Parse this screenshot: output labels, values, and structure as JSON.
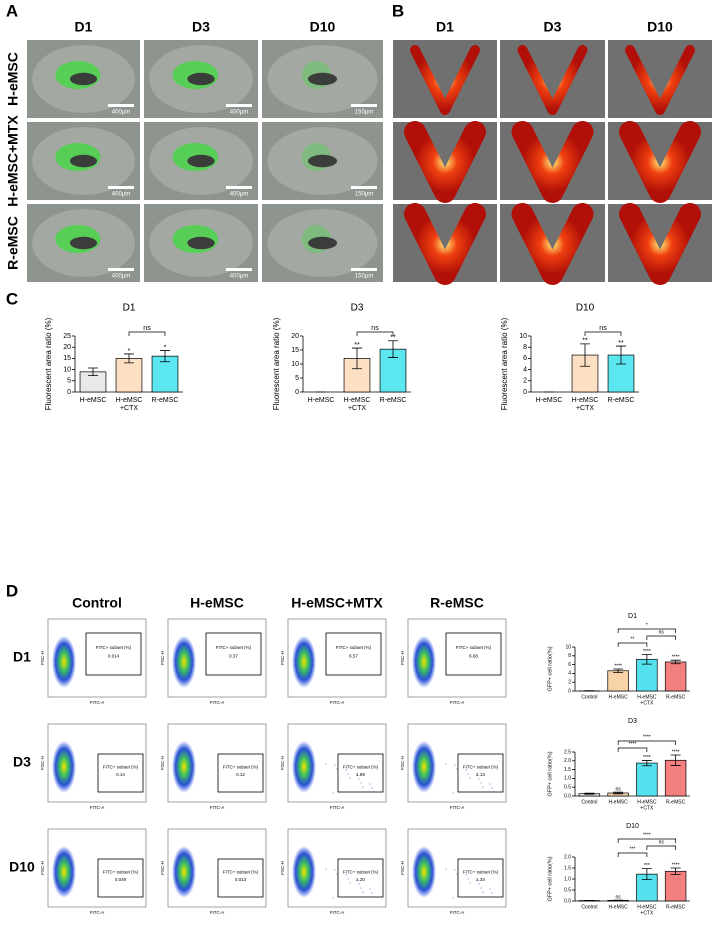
{
  "panels": [
    "A",
    "B",
    "C",
    "D"
  ],
  "panel_a": {
    "columns": [
      "D1",
      "D3",
      "D10"
    ],
    "rows": [
      "H-eMSC",
      "H-eMSC+MTX",
      "R-eMSC"
    ],
    "scale_bars": [
      [
        "400μm",
        "400μm",
        "150μm"
      ],
      [
        "400μm",
        "400μm",
        "150μm"
      ],
      [
        "400μm",
        "400μm",
        "150μm"
      ]
    ]
  },
  "panel_b": {
    "columns": [
      "D1",
      "D3",
      "D10"
    ]
  },
  "chart_data": [
    {
      "type": "bar",
      "title": "D1",
      "ylabel": "Fluorescent area ratio (%)",
      "categories": [
        [
          "H-eMSC"
        ],
        [
          "H-eMSC",
          "+CTX"
        ],
        [
          "R-eMSC"
        ]
      ],
      "values": [
        9,
        15,
        16
      ],
      "errors": [
        1.7,
        2,
        2.5
      ],
      "colors": [
        "#e9e9e9",
        "#fde0c4",
        "#5ce6f0"
      ],
      "annotations": [
        null,
        "*",
        "*"
      ],
      "brackets": [
        {
          "between": [
            [
              "H-eMSC",
              "+CTX"
            ],
            [
              "R-eMSC"
            ]
          ],
          "label": "ns"
        }
      ],
      "ylim": [
        0,
        25
      ],
      "yticks": [
        0,
        5,
        10,
        15,
        20,
        25
      ]
    },
    {
      "type": "bar",
      "title": "D3",
      "ylabel": "Fluorescent area ratio (%)",
      "categories": [
        [
          "H-eMSC"
        ],
        [
          "H-eMSC",
          "+CTX"
        ],
        [
          "R-eMSC"
        ]
      ],
      "values": [
        0,
        12,
        15.3
      ],
      "errors": [
        0,
        3.7,
        3
      ],
      "colors": [
        "#e9e9e9",
        "#fde0c4",
        "#5ce6f0"
      ],
      "annotations": [
        null,
        "**",
        "**"
      ],
      "brackets": [
        {
          "between": [
            [
              "H-eMSC",
              "+CTX"
            ],
            [
              "R-eMSC"
            ]
          ],
          "label": "ns"
        }
      ],
      "ylim": [
        0,
        20
      ],
      "yticks": [
        0,
        5,
        10,
        15,
        20
      ]
    },
    {
      "type": "bar",
      "title": "D10",
      "ylabel": "Fluorescent area ratio (%)",
      "categories": [
        [
          "H-eMSC"
        ],
        [
          "H-eMSC",
          "+CTX"
        ],
        [
          "R-eMSC"
        ]
      ],
      "values": [
        0,
        6.6,
        6.6
      ],
      "errors": [
        0,
        2,
        1.6
      ],
      "colors": [
        "#e9e9e9",
        "#fde0c4",
        "#5ce6f0"
      ],
      "annotations": [
        null,
        "**",
        "**"
      ],
      "brackets": [
        {
          "between": [
            [
              "H-eMSC",
              "+CTX"
            ],
            [
              "R-eMSC"
            ]
          ],
          "label": "ns"
        }
      ],
      "ylim": [
        0,
        10
      ],
      "yticks": [
        0,
        2,
        4,
        6,
        8,
        10
      ]
    },
    {
      "type": "bar",
      "title": "D1",
      "ylabel": "GFP+ cell ratio(%)",
      "categories": [
        [
          "Control"
        ],
        [
          "H-eMSC"
        ],
        [
          "H-eMSC",
          "+CTX"
        ],
        [
          "R-eMSC"
        ]
      ],
      "values": [
        0.02,
        4.6,
        7.2,
        6.6
      ],
      "errors": [
        0.05,
        0.4,
        1.1,
        0.4
      ],
      "colors": [
        "#e9e9e9",
        "#f9d3a8",
        "#55e2ee",
        "#f47f7f"
      ],
      "annotations": [
        null,
        "****",
        "****",
        "****"
      ],
      "brackets": [
        {
          "between": [
            [
              "H-eMSC"
            ],
            [
              "H-eMSC",
              "+CTX"
            ]
          ],
          "label": "**"
        },
        {
          "between": [
            [
              "H-eMSC",
              "+CTX"
            ],
            [
              "R-eMSC"
            ]
          ],
          "label": "ns"
        },
        {
          "between": [
            [
              "H-eMSC"
            ],
            [
              "R-eMSC"
            ]
          ],
          "label": "*"
        }
      ],
      "ylim": [
        0,
        10
      ],
      "yticks": [
        0,
        2,
        4,
        6,
        8,
        10
      ]
    },
    {
      "type": "bar",
      "title": "D3",
      "ylabel": "GFP+ cell ratio(%)",
      "categories": [
        [
          "Control"
        ],
        [
          "H-eMSC"
        ],
        [
          "H-eMSC",
          "+CTX"
        ],
        [
          "R-eMSC"
        ]
      ],
      "values": [
        0.13,
        0.17,
        1.87,
        2.03
      ],
      "errors": [
        0.03,
        0.05,
        0.15,
        0.3
      ],
      "colors": [
        "#e9e9e9",
        "#f9d3a8",
        "#55e2ee",
        "#f47f7f"
      ],
      "annotations": [
        null,
        "ns",
        "****",
        "****"
      ],
      "brackets": [
        {
          "between": [
            [
              "H-eMSC"
            ],
            [
              "H-eMSC",
              "+CTX"
            ]
          ],
          "label": "****"
        },
        {
          "between": [
            [
              "H-eMSC"
            ],
            [
              "R-eMSC"
            ]
          ],
          "label": "****"
        }
      ],
      "ylim": [
        0,
        2.5
      ],
      "yticks": [
        {
          "value": 0,
          "label": "0.0"
        },
        0.5,
        {
          "value": 1,
          "label": "1.0"
        },
        1.5,
        {
          "value": 2,
          "label": "2.0"
        },
        2.5
      ]
    },
    {
      "type": "bar",
      "title": "D10",
      "ylabel": "GFP+ cell ratio(%)",
      "categories": [
        [
          "Control"
        ],
        [
          "H-eMSC"
        ],
        [
          "H-eMSC",
          "+CTX"
        ],
        [
          "R-eMSC"
        ]
      ],
      "values": [
        0.02,
        0.03,
        1.22,
        1.35
      ],
      "errors": [
        0.01,
        0.01,
        0.25,
        0.15
      ],
      "colors": [
        "#e9e9e9",
        "#f9d3a8",
        "#55e2ee",
        "#f47f7f"
      ],
      "annotations": [
        null,
        "ns",
        "***",
        "****"
      ],
      "brackets": [
        {
          "between": [
            [
              "H-eMSC"
            ],
            [
              "H-eMSC",
              "+CTX"
            ]
          ],
          "label": "***"
        },
        {
          "between": [
            [
              "H-eMSC",
              "+CTX"
            ],
            [
              "R-eMSC"
            ]
          ],
          "label": "ns"
        },
        {
          "between": [
            [
              "H-eMSC"
            ],
            [
              "R-eMSC"
            ]
          ],
          "label": "****"
        }
      ],
      "ylim": [
        0,
        2
      ],
      "yticks": [
        {
          "value": 0,
          "label": "0.0"
        },
        0.5,
        {
          "value": 1,
          "label": "1.0"
        },
        1.5,
        {
          "value": 2,
          "label": "2.0"
        }
      ]
    }
  ],
  "panel_d": {
    "columns": [
      "Control",
      "H-eMSC",
      "H-eMSC+MTX",
      "R-eMSC"
    ],
    "rows": [
      "D1",
      "D3",
      "D10"
    ],
    "gate_label": "FITC+ subset (%)",
    "x_label": "FITC-A",
    "y_label": "FSC-H",
    "gate_values": [
      [
        "0.014",
        "0.37",
        "6.57",
        "6.68"
      ],
      [
        "0.14",
        "0.12",
        "1.89",
        "2.13"
      ],
      [
        "0.049",
        "0.013",
        "1.20",
        "1.34"
      ]
    ]
  }
}
